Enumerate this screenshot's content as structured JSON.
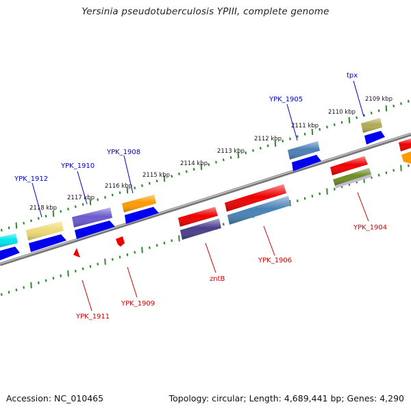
{
  "title": "Yersinia pseudotuberculosis YPIII, complete genome",
  "accession": "Accession: NC_010465",
  "summary": "Topology: circular; Length: 4,689,441 bp; Genes: 4,290",
  "colors": {
    "backbone": "#7a7a7a",
    "tick": "#2e8b2e",
    "plus_label": "#0000cc",
    "minus_label": "#cc0000"
  },
  "scale_labels": [
    "2109 kbp",
    "2110 kbp",
    "2111 kbp",
    "2112 kbp",
    "2113 kbp",
    "2114 kbp",
    "2115 kbp",
    "2116 kbp",
    "2117 kbp",
    "2118 kbp"
  ],
  "plus_labels": [
    "tpx",
    "YPK_1905",
    "YPK_1908",
    "YPK_1910",
    "YPK_1912"
  ],
  "minus_labels": [
    "YPK_1904",
    "YPK_1906",
    "zntB",
    "YPK_1909",
    "YPK_1911"
  ],
  "features": [
    {
      "name": "tpx",
      "strand": "plus",
      "color": "#b0aa55"
    },
    {
      "name": "YPK_1905",
      "strand": "plus",
      "color": "#4a7fb5"
    },
    {
      "name": "YPK_1908",
      "strand": "plus",
      "color": "#ff9900"
    },
    {
      "name": "YPK_1910",
      "strand": "plus",
      "color": "#6a5acd"
    },
    {
      "name": "YPK_1912",
      "strand": "plus",
      "color": "#eeda77"
    },
    {
      "name": "YPK_1904",
      "strand": "minus",
      "color": "#6b8e23"
    },
    {
      "name": "YPK_1906",
      "strand": "minus",
      "color": "#4682b4"
    },
    {
      "name": "zntB",
      "strand": "minus",
      "color": "#483d8b"
    },
    {
      "name": "YPK_1909",
      "strand": "minus",
      "color": "#ee0000"
    },
    {
      "name": "YPK_1911",
      "strand": "minus",
      "color": "#ee0000"
    }
  ]
}
